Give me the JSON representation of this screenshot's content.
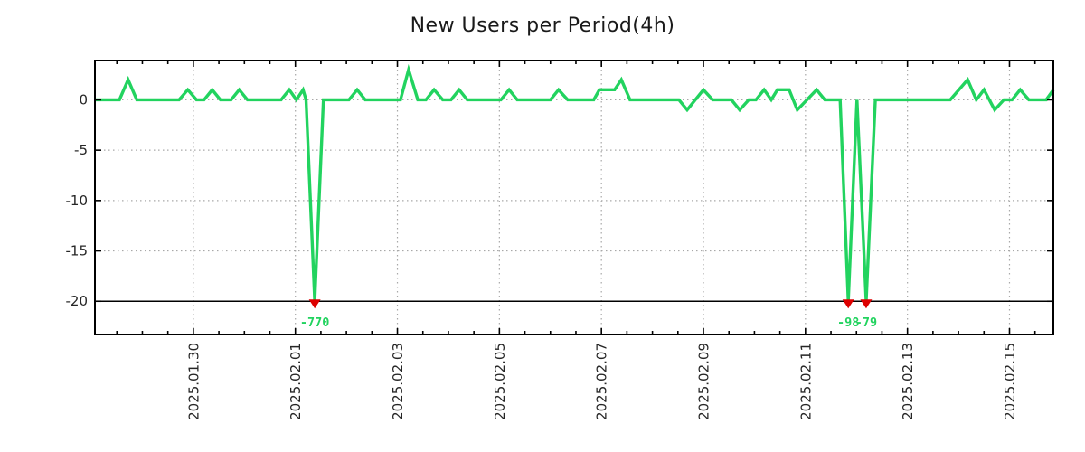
{
  "page": {
    "background": "#ffffff"
  },
  "chart_data": {
    "type": "line",
    "title": "New Users per Period(4h)",
    "period": "4h",
    "legend": "none",
    "grid": true,
    "colors": {
      "line": "#22d35f",
      "clip_marker": "#dd0000",
      "annotation_text": "#22d35f",
      "grid_dotted": "#a8a8a8",
      "axis": "#000000",
      "tick_text": "#262626",
      "title_text": "#1a1a1a"
    },
    "x_axis": {
      "description": "time in days since 2025-01-28 00:00, one data point per 4h",
      "min": 0.07,
      "max": 18.86,
      "minor_tick_interval": 0.5,
      "major_ticks": [
        {
          "t": 2,
          "label": "2025.01.30"
        },
        {
          "t": 4,
          "label": "2025.02.01"
        },
        {
          "t": 6,
          "label": "2025.02.03"
        },
        {
          "t": 8,
          "label": "2025.02.05"
        },
        {
          "t": 10,
          "label": "2025.02.07"
        },
        {
          "t": 12,
          "label": "2025.02.09"
        },
        {
          "t": 14,
          "label": "2025.02.11"
        },
        {
          "t": 16,
          "label": "2025.02.13"
        },
        {
          "t": 18,
          "label": "2025.02.15"
        }
      ]
    },
    "y_axis": {
      "min": -23.3,
      "max": 3.9,
      "ticks": [
        0,
        -5,
        -10,
        -15,
        -20
      ],
      "gridline_values": [
        0,
        -5,
        -10,
        -15
      ],
      "clip_line_y": -20
    },
    "series": [
      {
        "name": "new-users-per-4h",
        "points": [
          [
            0.07,
            0
          ],
          [
            0.55,
            0
          ],
          [
            0.72,
            2
          ],
          [
            0.89,
            0
          ],
          [
            1.72,
            0
          ],
          [
            1.89,
            1
          ],
          [
            2.06,
            0
          ],
          [
            2.21,
            0
          ],
          [
            2.37,
            1
          ],
          [
            2.53,
            0
          ],
          [
            2.74,
            0
          ],
          [
            2.9,
            1
          ],
          [
            3.06,
            0
          ],
          [
            3.72,
            0
          ],
          [
            3.88,
            1
          ],
          [
            4.02,
            0
          ],
          [
            4.15,
            1
          ],
          [
            4.21,
            0
          ],
          [
            4.38,
            -770
          ],
          [
            4.55,
            0
          ],
          [
            5.05,
            0
          ],
          [
            5.21,
            1
          ],
          [
            5.37,
            0
          ],
          [
            6.06,
            0
          ],
          [
            6.22,
            3
          ],
          [
            6.4,
            0
          ],
          [
            6.56,
            0
          ],
          [
            6.72,
            1
          ],
          [
            6.89,
            0
          ],
          [
            7.05,
            0
          ],
          [
            7.21,
            1
          ],
          [
            7.37,
            0
          ],
          [
            8.03,
            0
          ],
          [
            8.19,
            1
          ],
          [
            8.35,
            0
          ],
          [
            9.0,
            0
          ],
          [
            9.16,
            1
          ],
          [
            9.34,
            0
          ],
          [
            9.85,
            0
          ],
          [
            9.96,
            1
          ],
          [
            10.26,
            1
          ],
          [
            10.39,
            2
          ],
          [
            10.56,
            0
          ],
          [
            11.52,
            0
          ],
          [
            11.68,
            -1
          ],
          [
            11.84,
            0
          ],
          [
            12.0,
            1
          ],
          [
            12.18,
            0
          ],
          [
            12.55,
            0
          ],
          [
            12.71,
            -1
          ],
          [
            12.89,
            0
          ],
          [
            13.03,
            0
          ],
          [
            13.19,
            1
          ],
          [
            13.33,
            0
          ],
          [
            13.45,
            1
          ],
          [
            13.68,
            1
          ],
          [
            13.84,
            -1
          ],
          [
            14.22,
            1
          ],
          [
            14.38,
            0
          ],
          [
            14.68,
            0
          ],
          [
            14.84,
            -98
          ],
          [
            15.01,
            0
          ],
          [
            15.19,
            -79
          ],
          [
            15.37,
            0
          ],
          [
            16.84,
            0
          ],
          [
            17.18,
            2
          ],
          [
            17.35,
            0
          ],
          [
            17.5,
            1
          ],
          [
            17.71,
            -1
          ],
          [
            17.89,
            0
          ],
          [
            18.05,
            0
          ],
          [
            18.21,
            1
          ],
          [
            18.38,
            0
          ],
          [
            18.72,
            0
          ],
          [
            18.86,
            1
          ]
        ]
      }
    ],
    "clip_markers": [
      {
        "t": 4.38,
        "value": -770,
        "label": "-770"
      },
      {
        "t": 14.84,
        "value": -98,
        "label": "-98"
      },
      {
        "t": 15.19,
        "value": -79,
        "label": "-79"
      }
    ]
  }
}
